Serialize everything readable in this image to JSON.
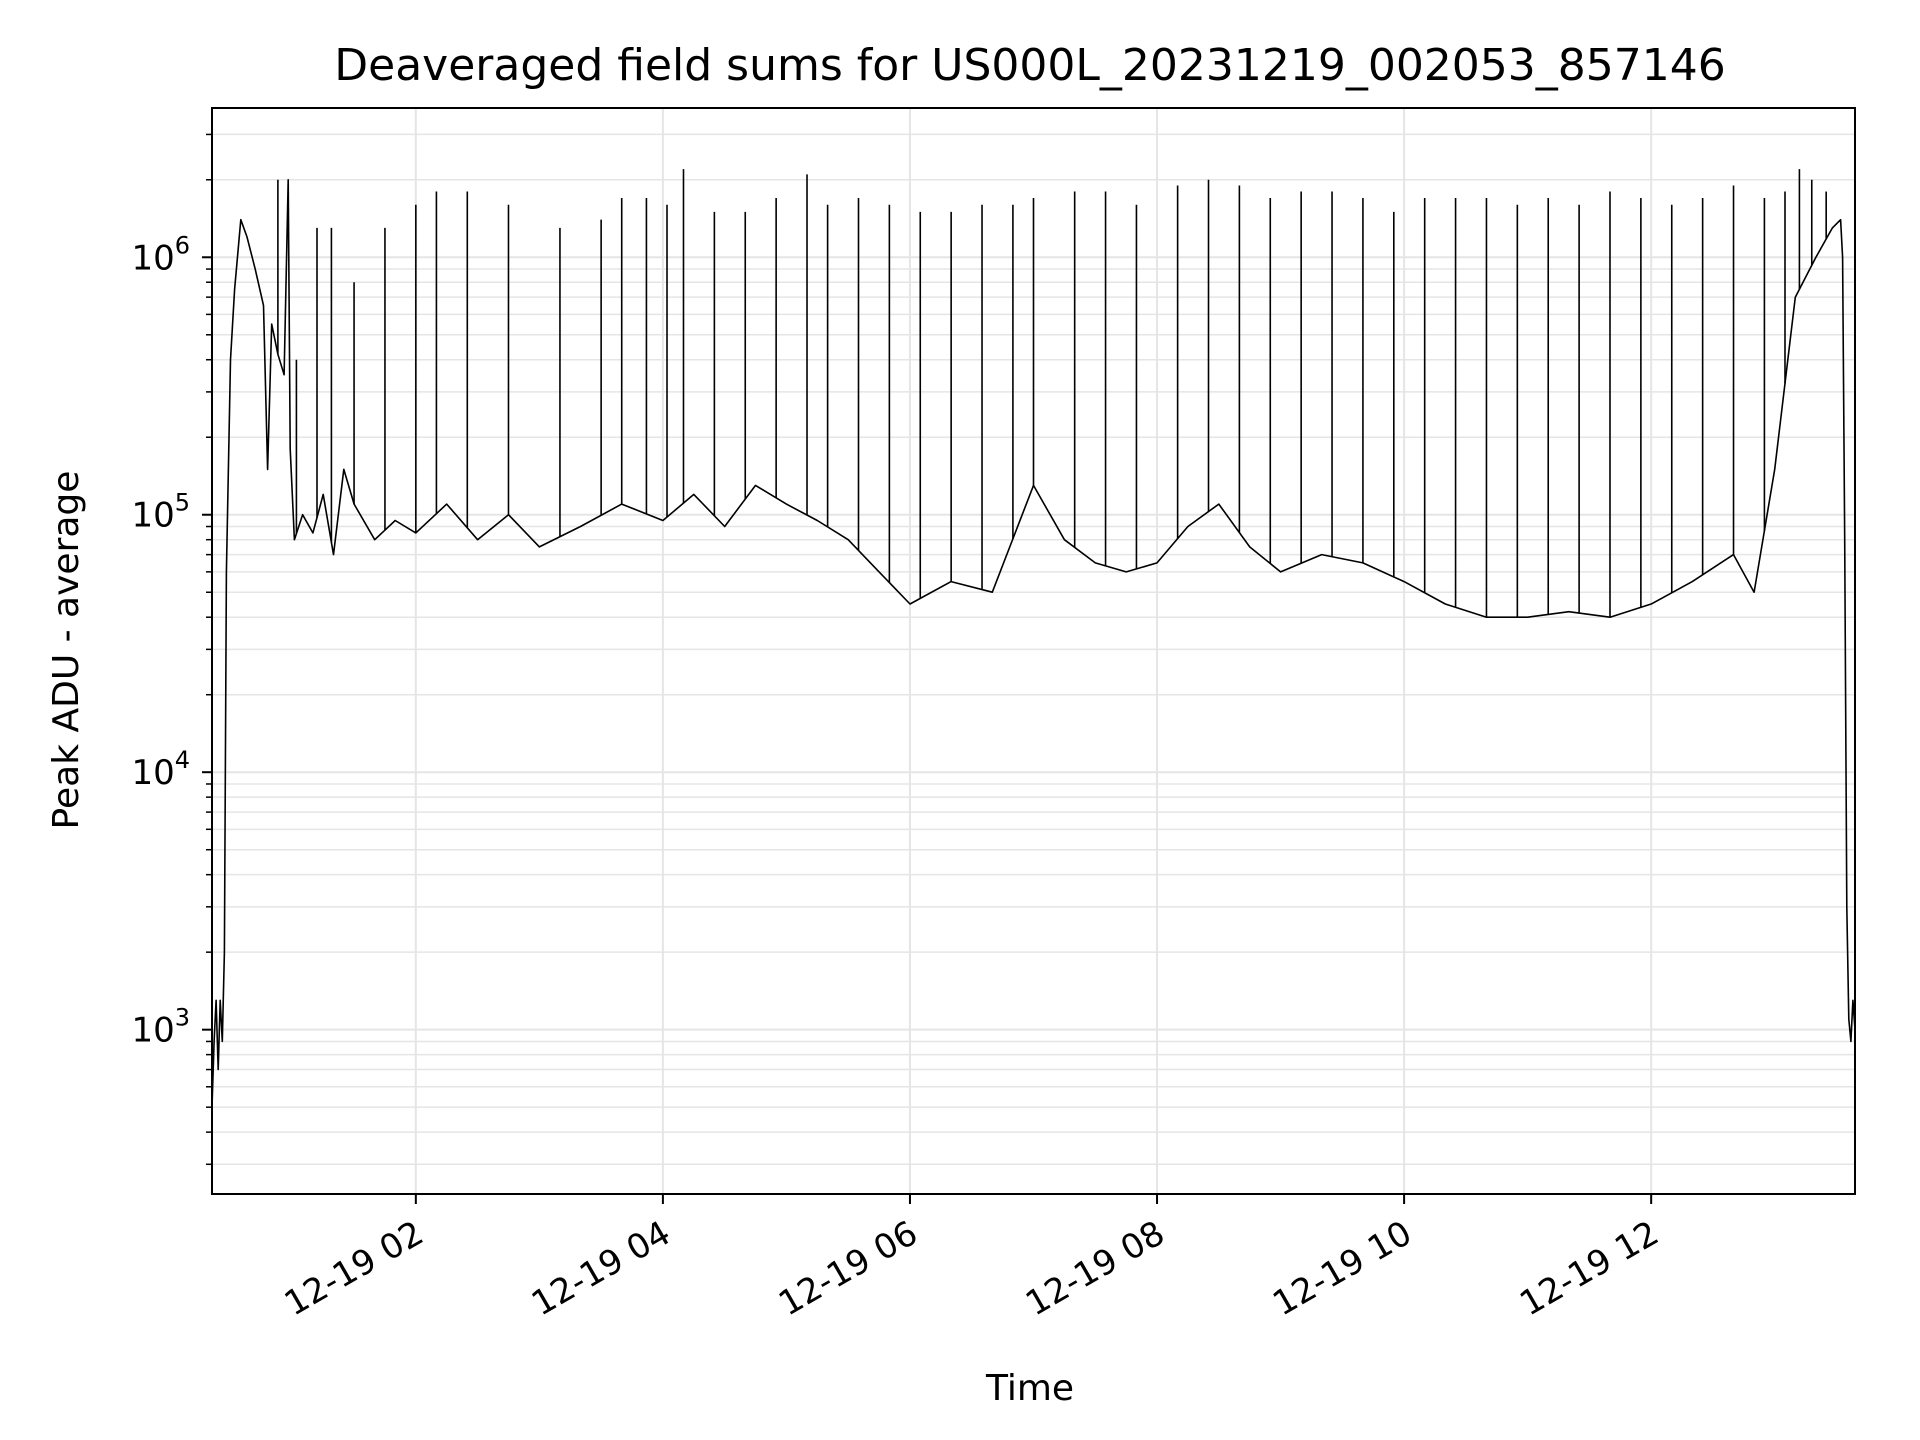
{
  "chart_data": {
    "type": "line",
    "title": "Deaveraged field sums for US000L_20231219_002053_857146",
    "xlabel": "Time",
    "ylabel": "Peak ADU - average",
    "yscale": "log",
    "ylim": [
      230,
      3800000
    ],
    "xlim": [
      "2023-12-19 00:21",
      "2023-12-19 13:39"
    ],
    "grid": true,
    "grid_color": "#e5e5e5",
    "line_color": "#000000",
    "x_ticks": [
      {
        "value": "2023-12-19 02:00",
        "label": "12-19 02"
      },
      {
        "value": "2023-12-19 04:00",
        "label": "12-19 04"
      },
      {
        "value": "2023-12-19 06:00",
        "label": "12-19 06"
      },
      {
        "value": "2023-12-19 08:00",
        "label": "12-19 08"
      },
      {
        "value": "2023-12-19 10:00",
        "label": "12-19 10"
      },
      {
        "value": "2023-12-19 12:00",
        "label": "12-19 12"
      }
    ],
    "y_ticks": [
      {
        "value": 1000,
        "base": "10",
        "exp": "3"
      },
      {
        "value": 10000,
        "base": "10",
        "exp": "4"
      },
      {
        "value": 100000,
        "base": "10",
        "exp": "5"
      },
      {
        "value": 1000000,
        "base": "10",
        "exp": "6"
      }
    ],
    "series": [
      {
        "line_color": "#000000",
        "points": [
          [
            "2023-12-19 00:21",
            500
          ],
          [
            "2023-12-19 00:22",
            900
          ],
          [
            "2023-12-19 00:23",
            1300
          ],
          [
            "2023-12-19 00:24",
            700
          ],
          [
            "2023-12-19 00:25",
            1300
          ],
          [
            "2023-12-19 00:26",
            900
          ],
          [
            "2023-12-19 00:27",
            2000
          ],
          [
            "2023-12-19 00:28",
            60000
          ],
          [
            "2023-12-19 00:30",
            400000
          ],
          [
            "2023-12-19 00:32",
            750000
          ],
          [
            "2023-12-19 00:35",
            1400000
          ],
          [
            "2023-12-19 00:38",
            1200000
          ],
          [
            "2023-12-19 00:42",
            900000
          ],
          [
            "2023-12-19 00:46",
            650000
          ],
          [
            "2023-12-19 00:48",
            150000
          ],
          [
            "2023-12-19 00:50",
            550000
          ],
          [
            "2023-12-19 00:53",
            420000
          ],
          [
            "2023-12-19 00:56",
            350000
          ],
          [
            "2023-12-19 00:58",
            2000000
          ],
          [
            "2023-12-19 00:59",
            180000
          ],
          [
            "2023-12-19 01:01",
            80000
          ],
          [
            "2023-12-19 01:05",
            100000
          ],
          [
            "2023-12-19 01:10",
            85000
          ],
          [
            "2023-12-19 01:15",
            120000
          ],
          [
            "2023-12-19 01:20",
            70000
          ],
          [
            "2023-12-19 01:25",
            150000
          ],
          [
            "2023-12-19 01:30",
            110000
          ],
          [
            "2023-12-19 01:40",
            80000
          ],
          [
            "2023-12-19 01:50",
            95000
          ],
          [
            "2023-12-19 02:00",
            85000
          ],
          [
            "2023-12-19 02:15",
            110000
          ],
          [
            "2023-12-19 02:30",
            80000
          ],
          [
            "2023-12-19 02:45",
            100000
          ],
          [
            "2023-12-19 03:00",
            75000
          ],
          [
            "2023-12-19 03:20",
            90000
          ],
          [
            "2023-12-19 03:40",
            110000
          ],
          [
            "2023-12-19 04:00",
            95000
          ],
          [
            "2023-12-19 04:15",
            120000
          ],
          [
            "2023-12-19 04:30",
            90000
          ],
          [
            "2023-12-19 04:45",
            130000
          ],
          [
            "2023-12-19 05:00",
            110000
          ],
          [
            "2023-12-19 05:15",
            95000
          ],
          [
            "2023-12-19 05:30",
            80000
          ],
          [
            "2023-12-19 05:45",
            60000
          ],
          [
            "2023-12-19 06:00",
            45000
          ],
          [
            "2023-12-19 06:20",
            55000
          ],
          [
            "2023-12-19 06:40",
            50000
          ],
          [
            "2023-12-19 07:00",
            130000
          ],
          [
            "2023-12-19 07:15",
            80000
          ],
          [
            "2023-12-19 07:30",
            65000
          ],
          [
            "2023-12-19 07:45",
            60000
          ],
          [
            "2023-12-19 08:00",
            65000
          ],
          [
            "2023-12-19 08:15",
            90000
          ],
          [
            "2023-12-19 08:30",
            110000
          ],
          [
            "2023-12-19 08:45",
            75000
          ],
          [
            "2023-12-19 09:00",
            60000
          ],
          [
            "2023-12-19 09:20",
            70000
          ],
          [
            "2023-12-19 09:40",
            65000
          ],
          [
            "2023-12-19 10:00",
            55000
          ],
          [
            "2023-12-19 10:20",
            45000
          ],
          [
            "2023-12-19 10:40",
            40000
          ],
          [
            "2023-12-19 11:00",
            40000
          ],
          [
            "2023-12-19 11:20",
            42000
          ],
          [
            "2023-12-19 11:40",
            40000
          ],
          [
            "2023-12-19 12:00",
            45000
          ],
          [
            "2023-12-19 12:20",
            55000
          ],
          [
            "2023-12-19 12:40",
            70000
          ],
          [
            "2023-12-19 12:50",
            50000
          ],
          [
            "2023-12-19 13:00",
            150000
          ],
          [
            "2023-12-19 13:10",
            700000
          ],
          [
            "2023-12-19 13:20",
            1000000
          ],
          [
            "2023-12-19 13:28",
            1300000
          ],
          [
            "2023-12-19 13:32",
            1400000
          ],
          [
            "2023-12-19 13:33",
            1000000
          ],
          [
            "2023-12-19 13:34",
            80000
          ],
          [
            "2023-12-19 13:35",
            3000
          ],
          [
            "2023-12-19 13:36",
            1100
          ],
          [
            "2023-12-19 13:37",
            900
          ],
          [
            "2023-12-19 13:38",
            1300
          ],
          [
            "2023-12-19 13:39",
            1000
          ]
        ],
        "spikes": [
          [
            "2023-12-19 00:53",
            2000000
          ],
          [
            "2023-12-19 01:02",
            400000
          ],
          [
            "2023-12-19 01:12",
            1300000
          ],
          [
            "2023-12-19 01:19",
            1300000
          ],
          [
            "2023-12-19 01:30",
            800000
          ],
          [
            "2023-12-19 01:45",
            1300000
          ],
          [
            "2023-12-19 02:00",
            1600000
          ],
          [
            "2023-12-19 02:10",
            1800000
          ],
          [
            "2023-12-19 02:25",
            1800000
          ],
          [
            "2023-12-19 02:45",
            1600000
          ],
          [
            "2023-12-19 03:10",
            1300000
          ],
          [
            "2023-12-19 03:30",
            1400000
          ],
          [
            "2023-12-19 03:40",
            1700000
          ],
          [
            "2023-12-19 03:52",
            1700000
          ],
          [
            "2023-12-19 04:02",
            1600000
          ],
          [
            "2023-12-19 04:10",
            2200000
          ],
          [
            "2023-12-19 04:25",
            1500000
          ],
          [
            "2023-12-19 04:40",
            1500000
          ],
          [
            "2023-12-19 04:55",
            1700000
          ],
          [
            "2023-12-19 05:10",
            2100000
          ],
          [
            "2023-12-19 05:20",
            1600000
          ],
          [
            "2023-12-19 05:35",
            1700000
          ],
          [
            "2023-12-19 05:50",
            1600000
          ],
          [
            "2023-12-19 06:05",
            1500000
          ],
          [
            "2023-12-19 06:20",
            1500000
          ],
          [
            "2023-12-19 06:35",
            1600000
          ],
          [
            "2023-12-19 06:50",
            1600000
          ],
          [
            "2023-12-19 07:00",
            1700000
          ],
          [
            "2023-12-19 07:20",
            1800000
          ],
          [
            "2023-12-19 07:35",
            1800000
          ],
          [
            "2023-12-19 07:50",
            1600000
          ],
          [
            "2023-12-19 08:10",
            1900000
          ],
          [
            "2023-12-19 08:25",
            2000000
          ],
          [
            "2023-12-19 08:40",
            1900000
          ],
          [
            "2023-12-19 08:55",
            1700000
          ],
          [
            "2023-12-19 09:10",
            1800000
          ],
          [
            "2023-12-19 09:25",
            1800000
          ],
          [
            "2023-12-19 09:40",
            1700000
          ],
          [
            "2023-12-19 09:55",
            1500000
          ],
          [
            "2023-12-19 10:10",
            1700000
          ],
          [
            "2023-12-19 10:25",
            1700000
          ],
          [
            "2023-12-19 10:40",
            1700000
          ],
          [
            "2023-12-19 10:55",
            1600000
          ],
          [
            "2023-12-19 11:10",
            1700000
          ],
          [
            "2023-12-19 11:25",
            1600000
          ],
          [
            "2023-12-19 11:40",
            1800000
          ],
          [
            "2023-12-19 11:55",
            1700000
          ],
          [
            "2023-12-19 12:10",
            1600000
          ],
          [
            "2023-12-19 12:25",
            1700000
          ],
          [
            "2023-12-19 12:40",
            1900000
          ],
          [
            "2023-12-19 12:55",
            1700000
          ],
          [
            "2023-12-19 13:05",
            1800000
          ],
          [
            "2023-12-19 13:12",
            2200000
          ],
          [
            "2023-12-19 13:18",
            2000000
          ],
          [
            "2023-12-19 13:25",
            1800000
          ]
        ]
      }
    ]
  }
}
